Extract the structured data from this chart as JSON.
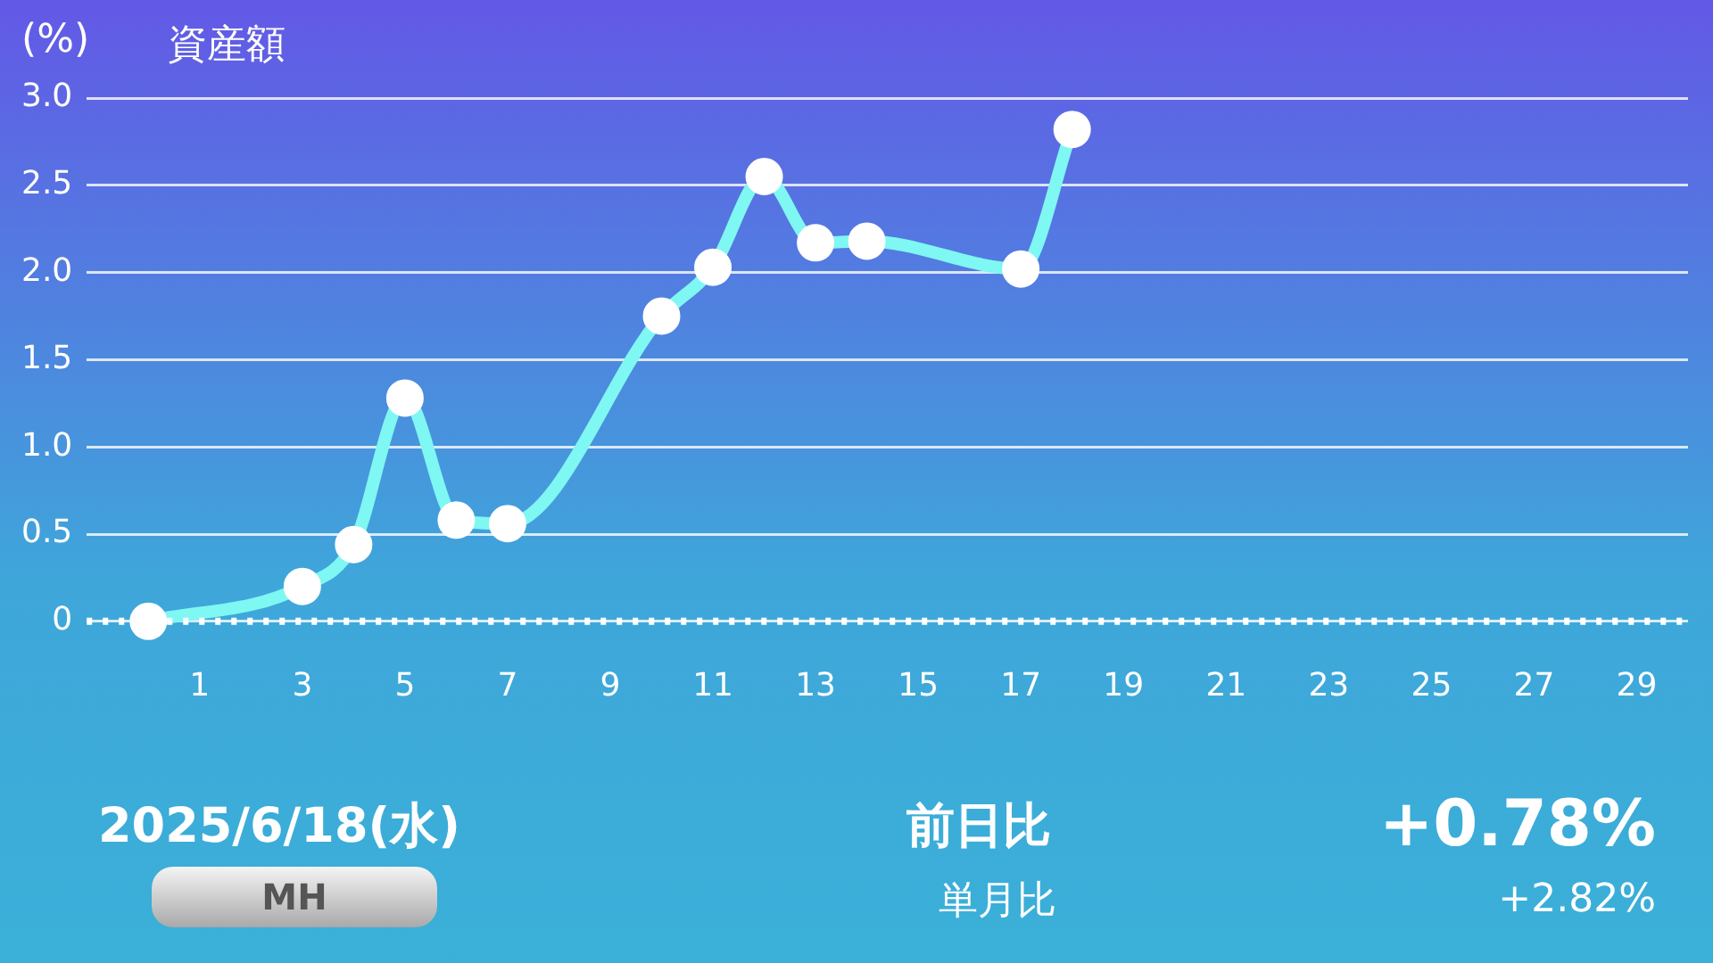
{
  "chart_data": {
    "type": "line",
    "title": "資産額",
    "ylabel": "(%)",
    "x": [
      0,
      3,
      4,
      5,
      6,
      7,
      10,
      11,
      12,
      13,
      14,
      17,
      18
    ],
    "series": [
      {
        "color": "#7ff7f2",
        "values": [
          0,
          0.2,
          0.44,
          1.28,
          0.58,
          0.56,
          1.75,
          2.03,
          2.55,
          2.17,
          2.18,
          2.02,
          2.82
        ]
      }
    ],
    "xlim": [
      -1.2,
      30
    ],
    "xticks": [
      1,
      3,
      5,
      7,
      9,
      11,
      13,
      15,
      17,
      19,
      21,
      23,
      25,
      27,
      29
    ],
    "ylim": [
      0,
      3
    ],
    "yticks": [
      0,
      {
        "value": 0.5,
        "label": "0.5"
      },
      {
        "value": 1,
        "label": "1.0"
      },
      {
        "value": 1.5,
        "label": "1.5"
      },
      {
        "value": 2,
        "label": "2.0"
      },
      {
        "value": 2.5,
        "label": "2.5"
      },
      {
        "value": 3,
        "label": "3.0"
      }
    ],
    "grid": "y",
    "marker": "circle",
    "line_style": "solid",
    "legend": false,
    "ref_lines": [
      {
        "axis": "y",
        "value": 0,
        "color": "#ffffff",
        "line_style": "dotted"
      }
    ],
    "annotations": [
      "2025/6/18(水)",
      "MH",
      "前日比",
      "+0.78%",
      "単月比",
      "+2.82%"
    ]
  }
}
